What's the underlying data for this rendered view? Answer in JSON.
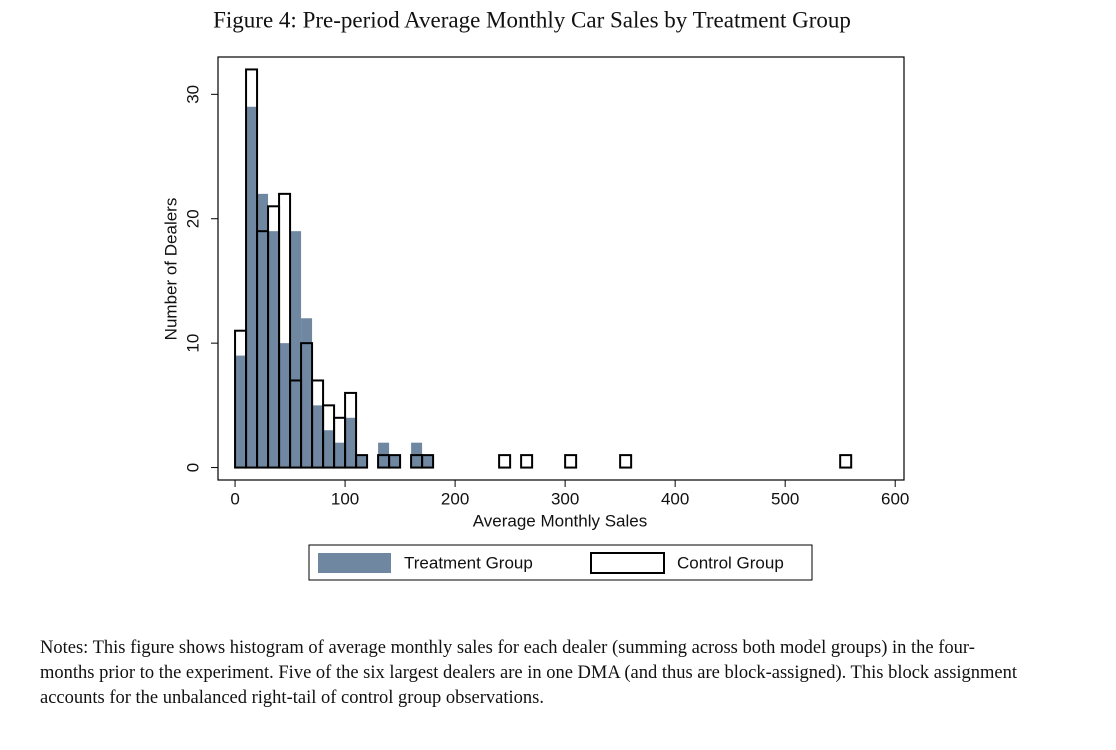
{
  "chart_data": {
    "type": "histogram",
    "title": "Figure 4: Pre-period Average Monthly Car Sales by Treatment Group",
    "x_label": "Average Monthly Sales",
    "y_label": "Number of Dealers",
    "bins": [
      0,
      10,
      20,
      30,
      40,
      50,
      60,
      70,
      80,
      90,
      100,
      110,
      120,
      130,
      140,
      150,
      160,
      170,
      180,
      190,
      200,
      210,
      220,
      230,
      240,
      250,
      260,
      270,
      280,
      290,
      300,
      310,
      320,
      330,
      340,
      350,
      360,
      370,
      380,
      390,
      400,
      410,
      420,
      430,
      440,
      450,
      460,
      470,
      480,
      490,
      500,
      510,
      520,
      530,
      540,
      550,
      560
    ],
    "series": [
      {
        "name": "Treatment Group",
        "color": "#6f87a0",
        "style": "filled",
        "values": [
          9,
          29,
          22,
          19,
          10,
          19,
          12,
          5,
          3,
          2,
          4,
          1,
          0,
          2,
          1,
          0,
          2,
          1,
          0,
          0,
          0,
          0,
          0,
          0,
          0,
          0,
          0,
          0,
          0,
          0,
          0,
          0,
          0,
          0,
          0,
          0,
          0,
          0,
          0,
          0,
          0,
          0,
          0,
          0,
          0,
          0,
          0,
          0,
          0,
          0,
          0,
          0,
          0,
          0,
          0,
          0
        ]
      },
      {
        "name": "Control Group",
        "color": "#000000",
        "style": "outline",
        "values": [
          11,
          32,
          19,
          21,
          22,
          7,
          10,
          7,
          5,
          4,
          6,
          1,
          0,
          1,
          1,
          0,
          1,
          1,
          0,
          0,
          0,
          0,
          0,
          0,
          1,
          0,
          1,
          0,
          0,
          0,
          1,
          0,
          0,
          0,
          0,
          1,
          0,
          0,
          0,
          0,
          0,
          0,
          0,
          0,
          0,
          0,
          0,
          0,
          0,
          0,
          0,
          0,
          0,
          0,
          0,
          1
        ]
      }
    ],
    "xlim": [
      -15.5,
      608
    ],
    "ylim": [
      -1,
      33
    ],
    "xticks": [
      0,
      100,
      200,
      300,
      400,
      500,
      600
    ],
    "yticks": [
      0,
      10,
      20,
      30
    ],
    "legend": "bottom"
  },
  "notes": "Notes: This figure shows histogram of average monthly sales for each dealer (summing across both model groups) in the four-months prior to the experiment. Five of the six largest dealers are in one DMA (and thus are block-assigned). This block assignment accounts for the unbalanced right-tail of control group observations."
}
